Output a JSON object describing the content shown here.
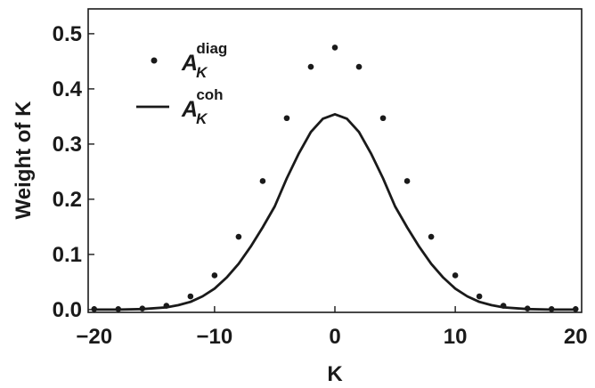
{
  "chart_data": {
    "type": "scatter",
    "title": "",
    "xlabel": "K",
    "ylabel": "Weight of K",
    "xlim": [
      -20.5,
      20.5
    ],
    "ylim": [
      -0.005,
      0.545
    ],
    "xticks": [
      -20,
      -10,
      0,
      10,
      20
    ],
    "yticks": [
      0.0,
      0.1,
      0.2,
      0.3,
      0.4,
      0.5
    ],
    "xtick_labels": [
      "−20",
      "−10",
      "0",
      "10",
      "20"
    ],
    "ytick_labels": [
      "0.0",
      "0.1",
      "0.2",
      "0.3",
      "0.4",
      "0.5"
    ],
    "grid": false,
    "legend_position": "top-left",
    "series": [
      {
        "name": "A_K^diag",
        "legend_base": "A",
        "legend_sub": "K",
        "legend_sup": "diag",
        "style": "points",
        "color": "#1a1a1a",
        "x": [
          -20,
          -18,
          -16,
          -14,
          -12,
          -10,
          -8,
          -6,
          -4,
          -2,
          0,
          2,
          4,
          6,
          8,
          10,
          12,
          14,
          16,
          18,
          20
        ],
        "y": [
          0.001,
          0.001,
          0.002,
          0.007,
          0.024,
          0.062,
          0.132,
          0.233,
          0.347,
          0.44,
          0.475,
          0.44,
          0.347,
          0.233,
          0.132,
          0.062,
          0.024,
          0.007,
          0.002,
          0.001,
          0.001
        ]
      },
      {
        "name": "A_K^coh",
        "legend_base": "A",
        "legend_sub": "K",
        "legend_sup": "coh",
        "style": "line",
        "color": "#1a1a1a",
        "x": [
          -20,
          -18,
          -16,
          -14,
          -13,
          -12,
          -11,
          -10,
          -9,
          -8,
          -7,
          -6,
          -5,
          -4,
          -3,
          -2,
          -1,
          0,
          1,
          2,
          3,
          4,
          5,
          6,
          7,
          8,
          9,
          10,
          11,
          12,
          13,
          14,
          16,
          18,
          20
        ],
        "y": [
          0.0,
          0.0,
          0.001,
          0.004,
          0.008,
          0.014,
          0.024,
          0.038,
          0.058,
          0.083,
          0.114,
          0.149,
          0.187,
          0.238,
          0.283,
          0.322,
          0.346,
          0.354,
          0.346,
          0.322,
          0.283,
          0.238,
          0.187,
          0.149,
          0.114,
          0.083,
          0.058,
          0.038,
          0.024,
          0.014,
          0.008,
          0.004,
          0.001,
          0.0,
          0.0
        ]
      }
    ]
  }
}
